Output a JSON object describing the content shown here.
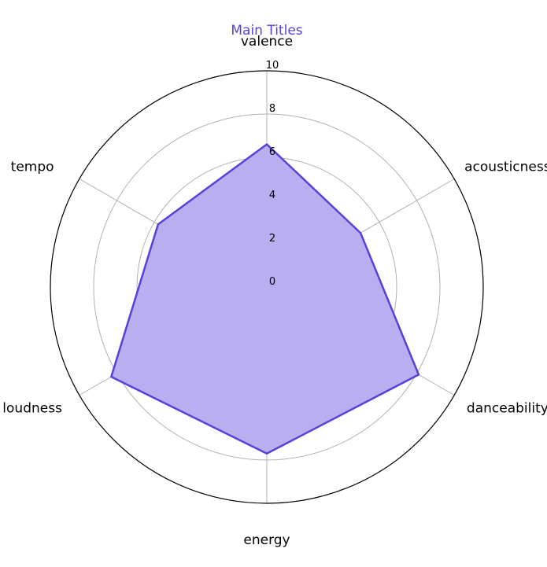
{
  "chart_data": {
    "type": "radar",
    "title": "Main Titles",
    "axes": [
      "valence",
      "acousticness",
      "danceability",
      "energy",
      "loudness",
      "tempo"
    ],
    "series": [
      {
        "values": [
          6.6,
          5.0,
          8.1,
          7.7,
          8.3,
          5.8
        ]
      }
    ],
    "rlim": [
      0,
      10
    ],
    "rticks": [
      "0",
      "2",
      "4",
      "6",
      "8",
      "10"
    ],
    "grid": true,
    "colors": {
      "title": "#5b3fd9",
      "line": "#5b3fd9",
      "fill": "#b8aef0",
      "grid": "#b0b0b0",
      "frame": "#000000"
    }
  }
}
